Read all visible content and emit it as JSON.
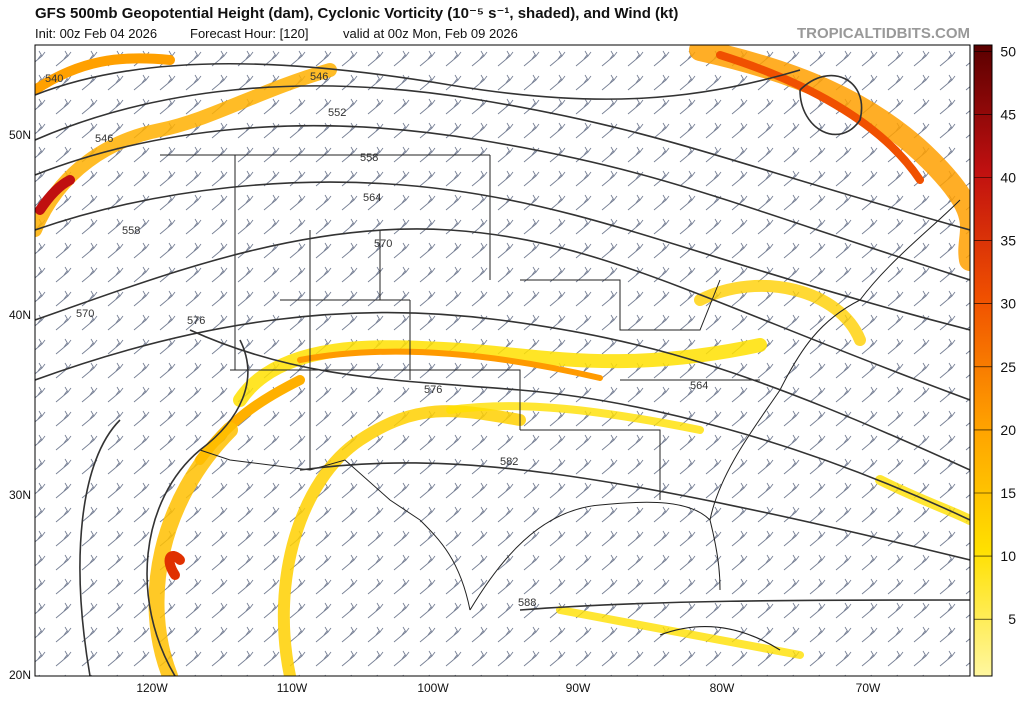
{
  "header": {
    "title": "GFS 500mb Geopotential Height (dam), Cyclonic Vorticity (10⁻⁵ s⁻¹, shaded), and Wind (kt)",
    "init": "Init: 00z Feb 04 2026",
    "forecast_hour": "Forecast Hour: [120]",
    "valid": "valid at 00z Mon, Feb 09 2026",
    "watermark": "TROPICALTIDBITS.COM"
  },
  "map": {
    "latitudes": [
      "50N",
      "40N",
      "30N",
      "20N"
    ],
    "longitudes": [
      "120W",
      "110W",
      "100W",
      "90W",
      "80W",
      "70W"
    ],
    "contour_labels": [
      "540",
      "546",
      "546",
      "552",
      "558",
      "558",
      "564",
      "570",
      "570",
      "576",
      "576",
      "582",
      "564",
      "588"
    ]
  },
  "colorbar": {
    "ticks": [
      5,
      10,
      15,
      20,
      25,
      30,
      35,
      40,
      45,
      50
    ],
    "lim": [
      0.5,
      50.5
    ]
  }
}
